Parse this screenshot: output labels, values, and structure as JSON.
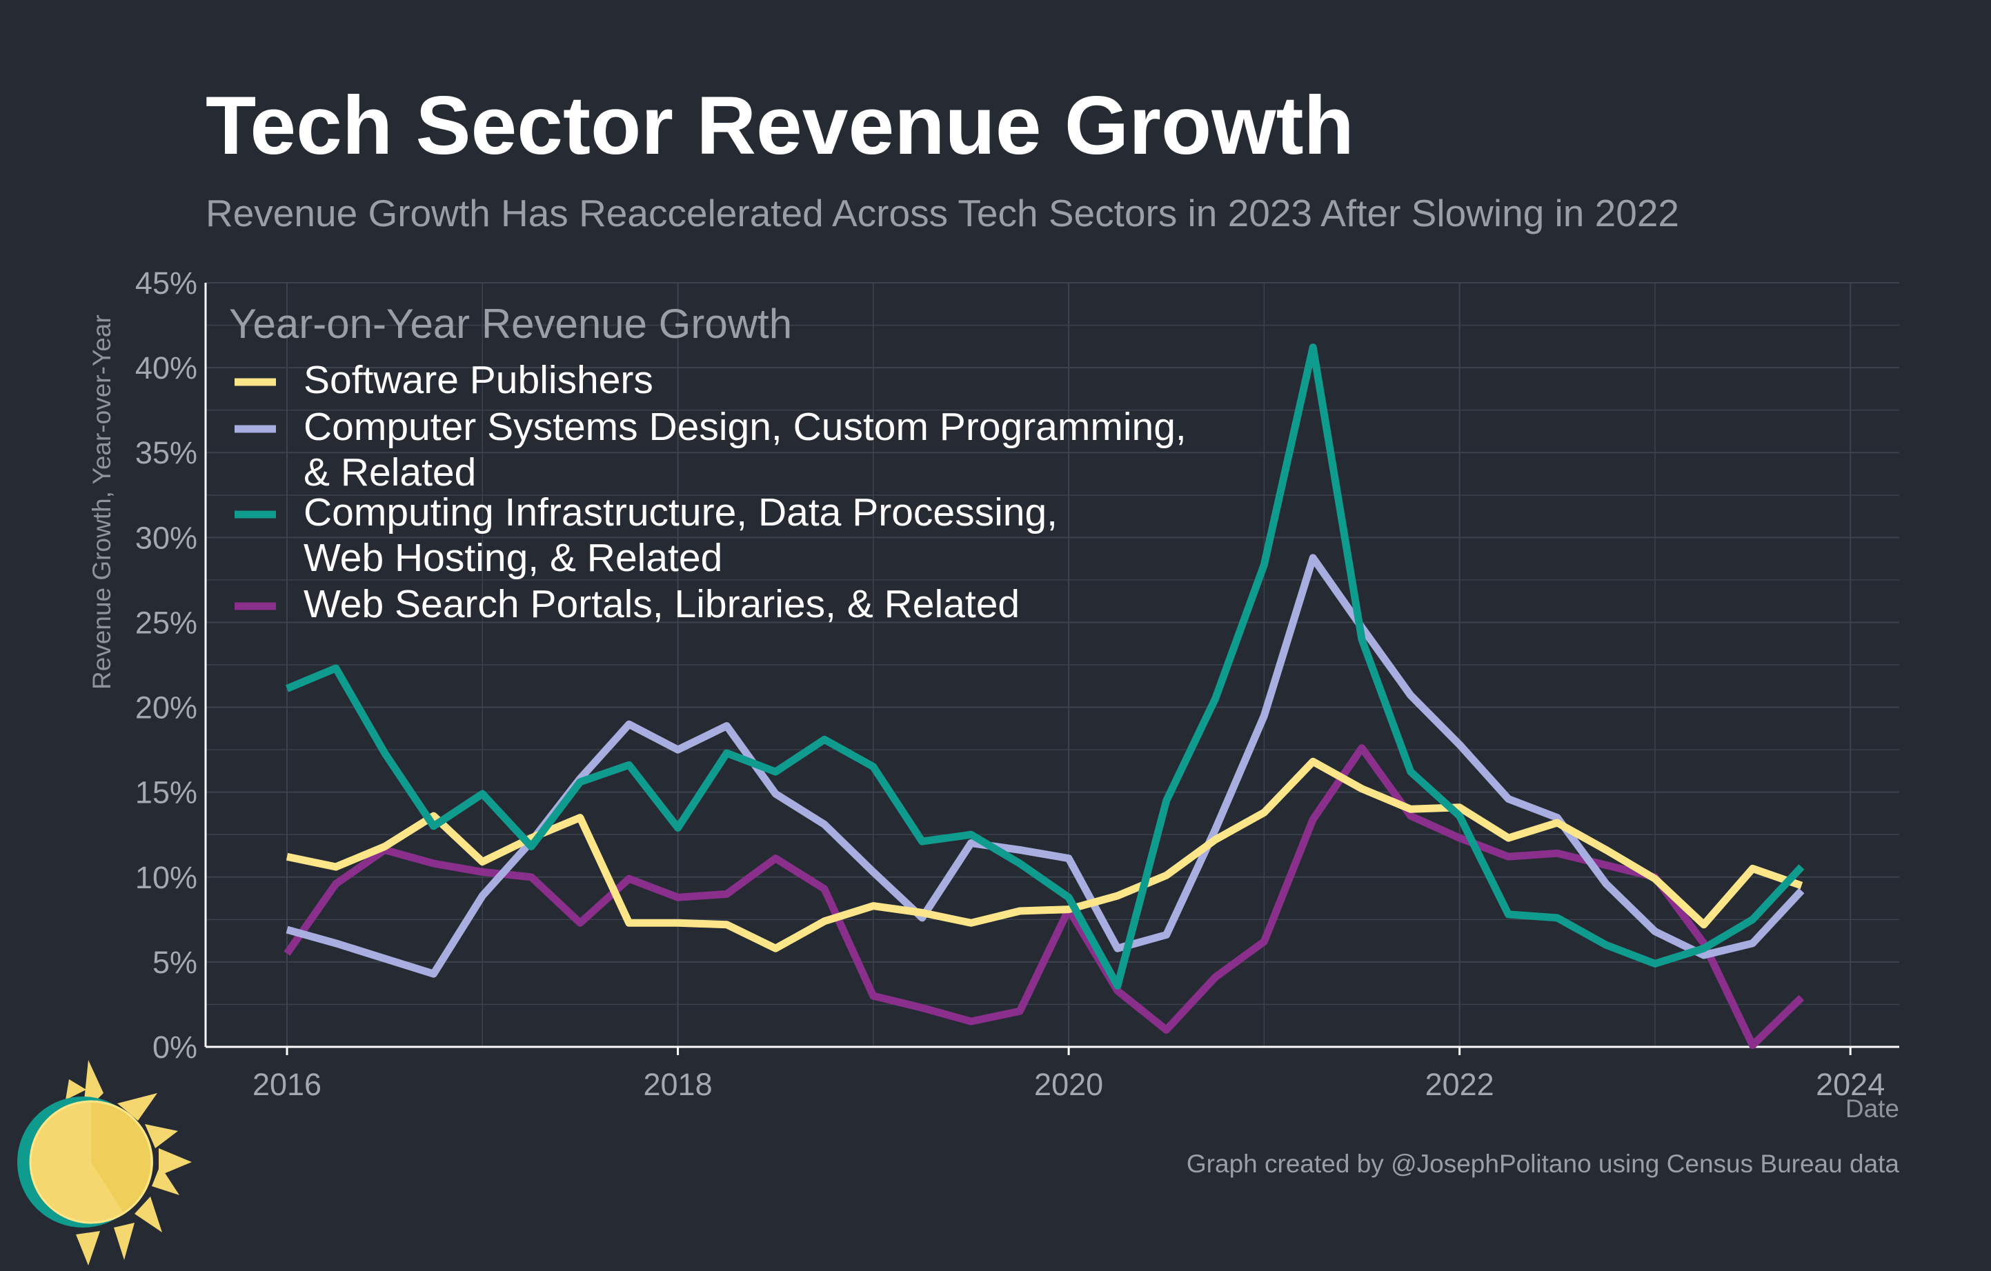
{
  "header": {
    "title": "Tech Sector Revenue Growth",
    "subtitle": "Revenue Growth Has Reaccelerated Across Tech Sectors in 2023 After Slowing in 2022"
  },
  "footer": {
    "credit": "Graph created by @JosephPolitano using Census Bureau data",
    "logo_icon": "sun-icon"
  },
  "colors": {
    "background": "#252a33",
    "grid": "#3d434e",
    "software": "#fde68a",
    "systems_design": "#a9aee0",
    "infrastructure": "#0f9b8e",
    "web_search": "#8a2f8b"
  },
  "chart_data": {
    "type": "line",
    "title": "Tech Sector Revenue Growth",
    "subtitle": "Revenue Growth Has Reaccelerated Across Tech Sectors in 2023 After Slowing in 2022",
    "xlabel": "Date",
    "ylabel": "Revenue Growth, Year-over-Year",
    "ylim": [
      0,
      45
    ],
    "xlim": [
      "2015-08",
      "2024-04"
    ],
    "x_ticks": [
      "2016",
      "2018",
      "2020",
      "2022",
      "2024"
    ],
    "y_ticks": [
      "0%",
      "5%",
      "10%",
      "15%",
      "20%",
      "25%",
      "30%",
      "35%",
      "40%",
      "45%"
    ],
    "grid": true,
    "legend_title": "Year-on-Year Revenue Growth",
    "legend_position": "top-left",
    "x": [
      "2016-01",
      "2016-04",
      "2016-07",
      "2016-10",
      "2017-01",
      "2017-04",
      "2017-07",
      "2017-10",
      "2018-01",
      "2018-04",
      "2018-07",
      "2018-10",
      "2019-01",
      "2019-04",
      "2019-07",
      "2019-10",
      "2020-01",
      "2020-04",
      "2020-07",
      "2020-10",
      "2021-01",
      "2021-04",
      "2021-07",
      "2021-10",
      "2022-01",
      "2022-04",
      "2022-07",
      "2022-10",
      "2023-01",
      "2023-04",
      "2023-07",
      "2023-10"
    ],
    "series": [
      {
        "name": "Software Publishers",
        "legend_lines": [
          "Software Publishers"
        ],
        "color": "#fde68a",
        "values": [
          11.2,
          10.6,
          11.8,
          13.6,
          10.9,
          12.3,
          13.5,
          7.3,
          7.3,
          7.2,
          5.8,
          7.4,
          8.3,
          7.9,
          7.3,
          8.0,
          8.1,
          8.9,
          10.1,
          12.2,
          13.8,
          16.8,
          15.2,
          14.0,
          14.1,
          12.3,
          13.2,
          11.6,
          9.9,
          7.2,
          10.5,
          9.5
        ]
      },
      {
        "name": "Computer Systems Design, Custom Programming, & Related",
        "legend_lines": [
          "Computer Systems Design, Custom Programming,",
          "& Related"
        ],
        "color": "#a9aee0",
        "values": [
          6.9,
          6.1,
          5.2,
          4.3,
          8.9,
          12.1,
          15.8,
          19.0,
          17.5,
          18.9,
          14.9,
          13.1,
          10.3,
          7.6,
          12.0,
          11.6,
          11.1,
          5.8,
          6.6,
          12.8,
          19.5,
          28.8,
          24.7,
          20.7,
          17.8,
          14.6,
          13.5,
          9.6,
          6.8,
          5.4,
          6.1,
          9.2
        ]
      },
      {
        "name": "Computing Infrastructure, Data Processing, Web Hosting, & Related",
        "legend_lines": [
          "Computing Infrastructure, Data Processing,",
          "Web Hosting, & Related"
        ],
        "color": "#0f9b8e",
        "values": [
          21.1,
          22.3,
          17.3,
          13.0,
          14.9,
          11.8,
          15.6,
          16.6,
          12.9,
          17.3,
          16.2,
          18.1,
          16.5,
          12.1,
          12.5,
          10.8,
          8.8,
          3.6,
          14.5,
          20.5,
          28.4,
          41.2,
          24.0,
          16.2,
          13.6,
          7.8,
          7.6,
          6.0,
          4.9,
          5.8,
          7.5,
          10.6
        ]
      },
      {
        "name": "Web Search Portals, Libraries, & Related",
        "legend_lines": [
          "Web Search Portals, Libraries, & Related"
        ],
        "color": "#8a2f8b",
        "values": [
          5.5,
          9.6,
          11.6,
          10.8,
          10.3,
          10.0,
          7.3,
          9.9,
          8.8,
          9.0,
          11.1,
          9.3,
          3.0,
          2.3,
          1.5,
          2.1,
          8.1,
          3.3,
          1.0,
          4.1,
          6.2,
          13.4,
          17.6,
          13.6,
          12.3,
          11.2,
          11.4,
          10.7,
          10.0,
          6.1,
          0.1,
          2.9
        ]
      }
    ]
  }
}
